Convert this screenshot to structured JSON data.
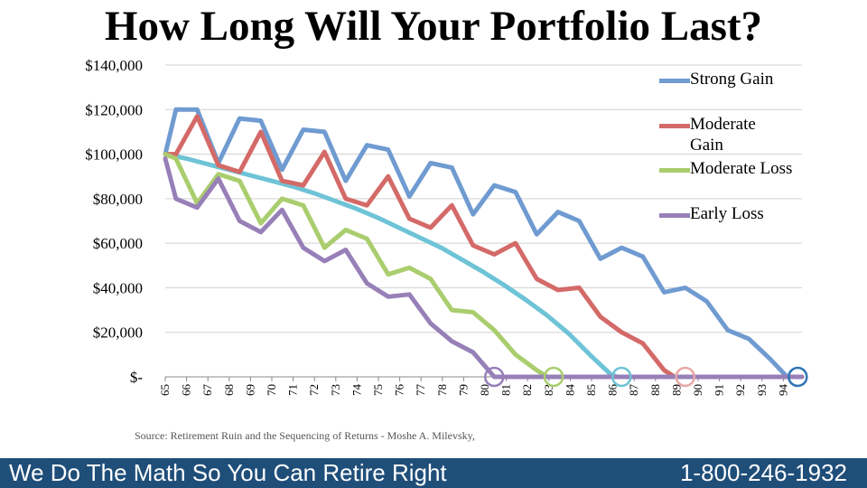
{
  "title": "How Long Will Your Portfolio Last?",
  "source": "Source: Retirement Ruin and the Sequencing of Returns - Moshe A. Milevsky,",
  "footer": {
    "tagline": "We Do The Math So You Can Retire Right",
    "phone": "1-800-246-1932"
  },
  "colors": {
    "strong_gain": "#6f9bd1",
    "moderate_gain": "#d46a68",
    "moderate_loss": "#aacd6e",
    "early_loss": "#9780b8",
    "baseline": "#6ec3d6",
    "footer_bg": "#1f4e79"
  },
  "chart_data": {
    "type": "line",
    "title": "How Long Will Your Portfolio Last?",
    "xlabel": "",
    "ylabel": "",
    "x": [
      65,
      66,
      67,
      68,
      69,
      70,
      71,
      72,
      73,
      74,
      75,
      76,
      77,
      78,
      79,
      80,
      81,
      82,
      83,
      84,
      85,
      86,
      87,
      88,
      89,
      90,
      91,
      92,
      93,
      94
    ],
    "y_tick_labels": [
      "$-",
      "$20,000",
      "$40,000",
      "$60,000",
      "$80,000",
      "$100,000",
      "$120,000",
      "$140,000"
    ],
    "y_tick_values": [
      0,
      20000,
      40000,
      60000,
      80000,
      100000,
      120000,
      140000
    ],
    "ylim": [
      0,
      140000
    ],
    "xlim": [
      65,
      95
    ],
    "grid": true,
    "legend_position": "right",
    "series": [
      {
        "name": "Strong Gain",
        "color": "#6f9bd1",
        "points": [
          [
            65,
            100000
          ],
          [
            65.5,
            120000
          ],
          [
            66.5,
            120000
          ],
          [
            67.5,
            96000
          ],
          [
            68.5,
            116000
          ],
          [
            69.5,
            115000
          ],
          [
            70.5,
            93000
          ],
          [
            71.5,
            111000
          ],
          [
            72.5,
            110000
          ],
          [
            73.5,
            88000
          ],
          [
            74.5,
            104000
          ],
          [
            75.5,
            102000
          ],
          [
            76.5,
            81000
          ],
          [
            77.5,
            96000
          ],
          [
            78.5,
            94000
          ],
          [
            79.5,
            73000
          ],
          [
            80.5,
            86000
          ],
          [
            81.5,
            83000
          ],
          [
            82.5,
            64000
          ],
          [
            83.5,
            74000
          ],
          [
            84.5,
            70000
          ],
          [
            85.5,
            53000
          ],
          [
            86.5,
            58000
          ],
          [
            87.5,
            54000
          ],
          [
            88.5,
            38000
          ],
          [
            89.5,
            40000
          ],
          [
            90.5,
            34000
          ],
          [
            91.5,
            21000
          ],
          [
            92.5,
            17000
          ],
          [
            93.5,
            8000
          ],
          [
            94.3,
            0
          ],
          [
            95,
            0
          ]
        ]
      },
      {
        "name": "Moderate Gain",
        "color": "#d46a68",
        "points": [
          [
            65,
            100000
          ],
          [
            65.5,
            100000
          ],
          [
            66.5,
            117000
          ],
          [
            67.5,
            95000
          ],
          [
            68.5,
            92000
          ],
          [
            69.5,
            110000
          ],
          [
            70.5,
            88000
          ],
          [
            71.5,
            86000
          ],
          [
            72.5,
            101000
          ],
          [
            73.5,
            80000
          ],
          [
            74.5,
            77000
          ],
          [
            75.5,
            90000
          ],
          [
            76.5,
            71000
          ],
          [
            77.5,
            67000
          ],
          [
            78.5,
            77000
          ],
          [
            79.5,
            59000
          ],
          [
            80.5,
            55000
          ],
          [
            81.5,
            60000
          ],
          [
            82.5,
            44000
          ],
          [
            83.5,
            39000
          ],
          [
            84.5,
            40000
          ],
          [
            85.5,
            27000
          ],
          [
            86.5,
            20000
          ],
          [
            87.5,
            15000
          ],
          [
            88.5,
            3000
          ],
          [
            89,
            0
          ],
          [
            95,
            0
          ]
        ]
      },
      {
        "name": "Moderate Loss",
        "color": "#aacd6e",
        "points": [
          [
            65,
            100000
          ],
          [
            65.5,
            98000
          ],
          [
            66.5,
            78000
          ],
          [
            67.5,
            91000
          ],
          [
            68.5,
            88000
          ],
          [
            69.5,
            69000
          ],
          [
            70.5,
            80000
          ],
          [
            71.5,
            77000
          ],
          [
            72.5,
            58000
          ],
          [
            73.5,
            66000
          ],
          [
            74.5,
            62000
          ],
          [
            75.5,
            46000
          ],
          [
            76.5,
            49000
          ],
          [
            77.5,
            44000
          ],
          [
            78.5,
            30000
          ],
          [
            79.5,
            29000
          ],
          [
            80.5,
            21000
          ],
          [
            81.5,
            10000
          ],
          [
            82.5,
            3000
          ],
          [
            83,
            0
          ],
          [
            95,
            0
          ]
        ]
      },
      {
        "name": "Early Loss",
        "color": "#9780b8",
        "points": [
          [
            65,
            98000
          ],
          [
            65.5,
            80000
          ],
          [
            66.5,
            76000
          ],
          [
            67.5,
            89000
          ],
          [
            68.5,
            70000
          ],
          [
            69.5,
            65000
          ],
          [
            70.5,
            75000
          ],
          [
            71.5,
            58000
          ],
          [
            72.5,
            52000
          ],
          [
            73.5,
            57000
          ],
          [
            74.5,
            42000
          ],
          [
            75.5,
            36000
          ],
          [
            76.5,
            37000
          ],
          [
            77.5,
            24000
          ],
          [
            78.5,
            16000
          ],
          [
            79.5,
            11000
          ],
          [
            80.5,
            0
          ],
          [
            95,
            0
          ]
        ]
      },
      {
        "name": "",
        "color": "#6ec3d6",
        "points": [
          [
            65,
            100000
          ],
          [
            66,
            98000
          ],
          [
            67,
            95500
          ],
          [
            68,
            93000
          ],
          [
            69,
            90500
          ],
          [
            70,
            88000
          ],
          [
            71,
            85500
          ],
          [
            72,
            82500
          ],
          [
            73,
            79000
          ],
          [
            74,
            75500
          ],
          [
            75,
            71500
          ],
          [
            76,
            67000
          ],
          [
            77,
            62500
          ],
          [
            78,
            58000
          ],
          [
            79,
            52500
          ],
          [
            80,
            47000
          ],
          [
            81,
            41000
          ],
          [
            82,
            34500
          ],
          [
            83,
            27500
          ],
          [
            84,
            19500
          ],
          [
            85,
            10000
          ],
          [
            86,
            1000
          ],
          [
            86.3,
            0
          ],
          [
            95,
            0
          ]
        ]
      }
    ],
    "end_markers": [
      {
        "x": 80.5,
        "color": "#9780b8"
      },
      {
        "x": 83.3,
        "color": "#aacd6e"
      },
      {
        "x": 86.5,
        "color": "#6ec3d6"
      },
      {
        "x": 89.5,
        "color": "#e8a8a6"
      },
      {
        "x": 94.8,
        "color": "#2e75b6"
      }
    ]
  }
}
